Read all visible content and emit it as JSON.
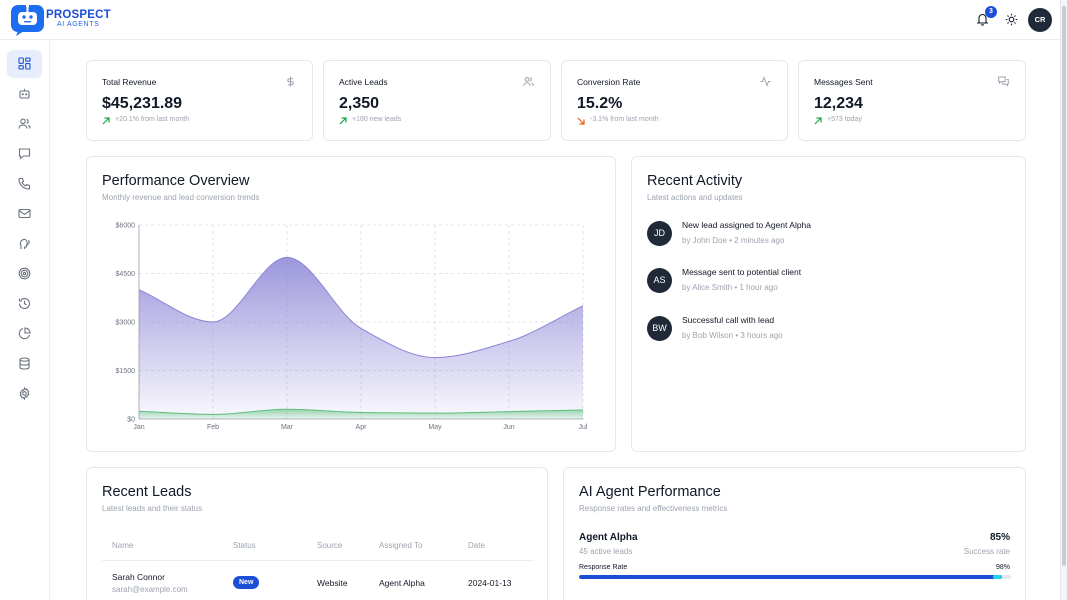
{
  "header": {
    "brand_name": "PROSPECT",
    "brand_sub": "AI AGENTS",
    "notification_count": "3",
    "user_initials": "CR"
  },
  "sidebar": {
    "items": [
      {
        "icon": "dashboard-icon",
        "active": true
      },
      {
        "icon": "bot-icon"
      },
      {
        "icon": "users-icon"
      },
      {
        "icon": "message-icon"
      },
      {
        "icon": "phone-icon"
      },
      {
        "icon": "mail-icon"
      },
      {
        "icon": "speech-icon"
      },
      {
        "icon": "target-icon"
      },
      {
        "icon": "history-icon"
      },
      {
        "icon": "pie-chart-icon"
      },
      {
        "icon": "database-icon"
      },
      {
        "icon": "gear-icon"
      }
    ]
  },
  "stats": [
    {
      "label": "Total Revenue",
      "value": "$45,231.89",
      "delta": "+20.1% from last month",
      "trend": "up",
      "icon": "dollar-icon"
    },
    {
      "label": "Active Leads",
      "value": "2,350",
      "delta": "+180 new leads",
      "trend": "up",
      "icon": "users-icon"
    },
    {
      "label": "Conversion Rate",
      "value": "15.2%",
      "delta": "-3.1% from last month",
      "trend": "down",
      "icon": "activity-icon"
    },
    {
      "label": "Messages Sent",
      "value": "12,234",
      "delta": "+573 today",
      "trend": "up",
      "icon": "messages-icon"
    }
  ],
  "performance": {
    "title": "Performance Overview",
    "subtitle": "Monthly revenue and lead conversion trends"
  },
  "chart_data": {
    "type": "area",
    "categories": [
      "Jan",
      "Feb",
      "Mar",
      "Apr",
      "May",
      "Jun",
      "Jul"
    ],
    "series": [
      {
        "values": [
          4000,
          3000,
          5000,
          2800,
          1900,
          2400,
          3500
        ],
        "color": "#8b85d6"
      },
      {
        "values": [
          240,
          140,
          300,
          200,
          180,
          230,
          280
        ],
        "color": "#5cbf7a"
      }
    ],
    "ylim": [
      0,
      6000
    ],
    "yticks": [
      "$0",
      "$1500",
      "$3000",
      "$4500",
      "$6000"
    ],
    "grid": true
  },
  "activity": {
    "title": "Recent Activity",
    "subtitle": "Latest actions and updates",
    "items": [
      {
        "initials": "JD",
        "title": "New lead assigned to Agent Alpha",
        "meta": "by John Doe • 2 minutes ago"
      },
      {
        "initials": "AS",
        "title": "Message sent to potential client",
        "meta": "by Alice Smith • 1 hour ago"
      },
      {
        "initials": "BW",
        "title": "Successful call with lead",
        "meta": "by Bob Wilson • 3 hours ago"
      }
    ]
  },
  "leads": {
    "title": "Recent Leads",
    "subtitle": "Latest leads and their status",
    "columns": [
      "Name",
      "Status",
      "Source",
      "Assigned To",
      "Date"
    ],
    "rows": [
      {
        "name": "Sarah Connor",
        "email": "sarah@example.com",
        "status": "New",
        "source": "Website",
        "assigned": "Agent Alpha",
        "date": "2024-01-13"
      }
    ]
  },
  "agents": {
    "title": "AI Agent Performance",
    "subtitle": "Response rates and effectiveness metrics",
    "items": [
      {
        "name": "Agent Alpha",
        "leads": "45 active leads",
        "rate": "85%",
        "rate_label": "Success rate",
        "response_label": "Response Rate",
        "response_value": "98%",
        "response_fraction": 0.98
      }
    ]
  },
  "colors": {
    "brand": "#1d4ed8",
    "up": "#16a34a",
    "down": "#ea580c"
  }
}
